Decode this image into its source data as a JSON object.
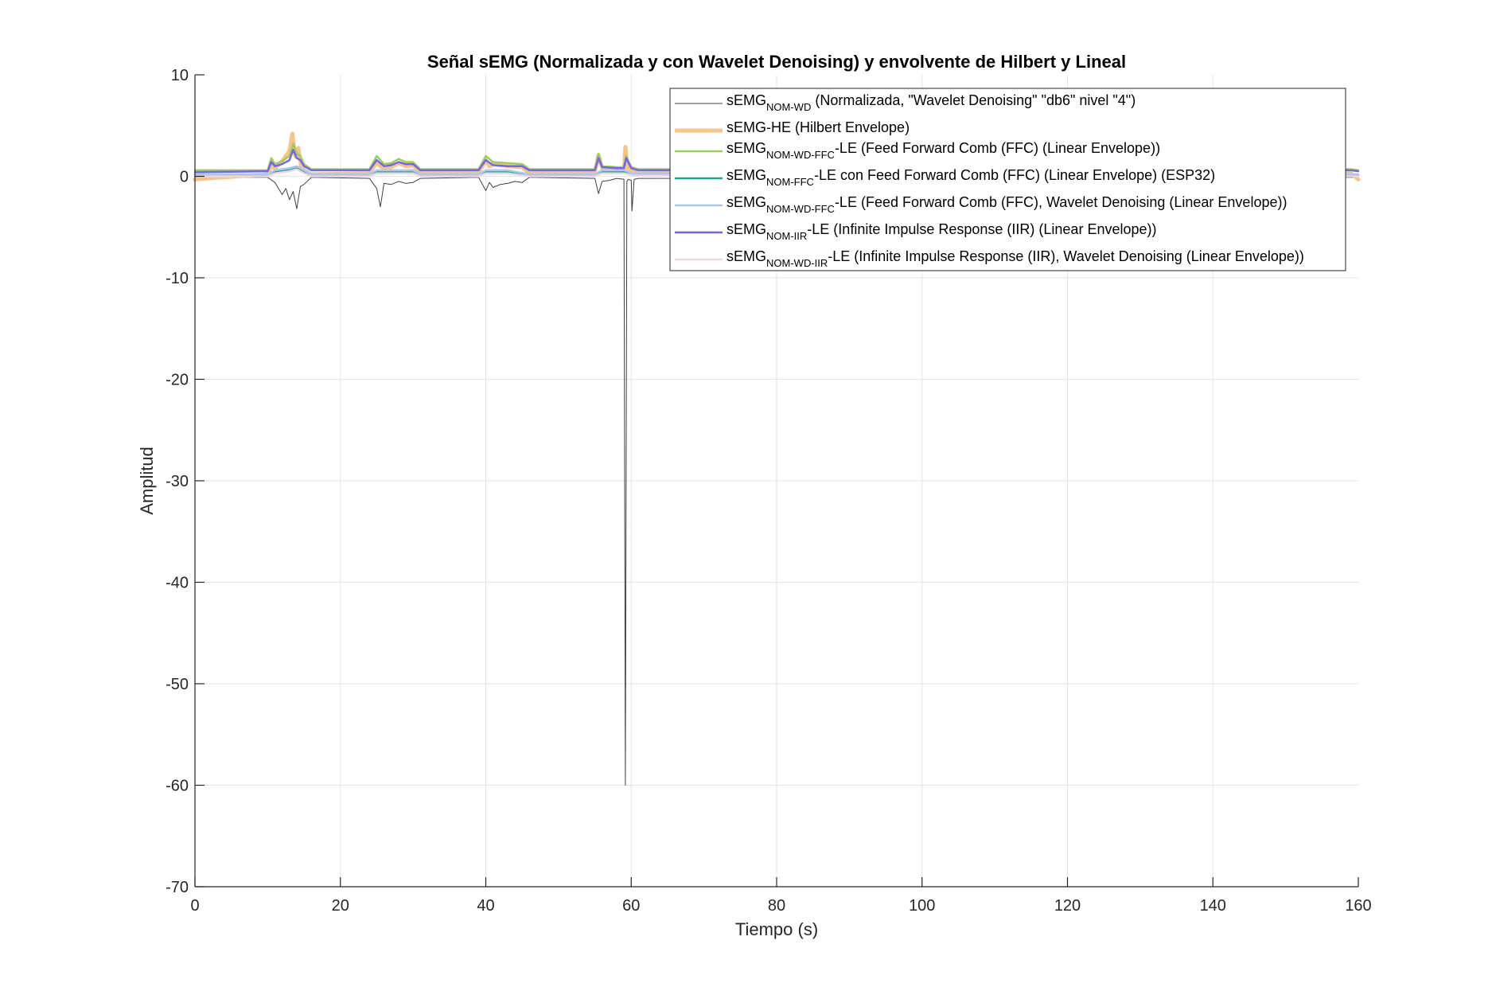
{
  "chart_data": {
    "type": "line",
    "title": "Señal sEMG (Normalizada y con Wavelet Denoising) y envolvente de Hilbert y Lineal",
    "xlabel": "Tiempo (s)",
    "ylabel": "Amplitud",
    "xlim": [
      0,
      160
    ],
    "ylim": [
      -70,
      10
    ],
    "x_ticks": [
      0,
      20,
      40,
      60,
      80,
      100,
      120,
      140,
      160
    ],
    "y_ticks": [
      10,
      0,
      -10,
      -20,
      -30,
      -40,
      -50,
      -60,
      -70
    ],
    "grid": true,
    "legend_position": "top-right",
    "series": [
      {
        "name_main": "sEMG",
        "name_sub": "NOM-WD",
        "name_rest": " (Normalizada, \"Wavelet Denoising\" \"db6\" nivel \"4\")",
        "color": "#404040",
        "width": 1,
        "x": [
          0,
          10,
          11,
          12,
          12.5,
          13,
          13.5,
          14,
          14.5,
          15,
          16,
          24,
          25,
          25.5,
          26,
          27,
          28,
          29,
          30,
          31,
          39,
          40,
          40.5,
          41,
          42,
          43,
          44,
          45,
          46,
          55,
          55.5,
          56,
          57,
          58,
          59,
          59.2,
          59.4,
          59.6,
          60,
          60.1,
          60.4,
          61,
          160
        ],
        "values": [
          -0.1,
          -0.1,
          -0.6,
          -1.8,
          -1.2,
          -2.3,
          -1.5,
          -3.2,
          -1.0,
          -0.8,
          -0.1,
          -0.2,
          -1.2,
          -3.0,
          -0.7,
          -0.8,
          -0.5,
          -0.7,
          -0.6,
          -0.2,
          -0.1,
          -1.4,
          -0.6,
          -1.1,
          -0.8,
          -0.7,
          -0.5,
          -0.6,
          -0.1,
          -0.2,
          -1.7,
          -0.5,
          -0.4,
          -0.2,
          -0.3,
          -60,
          -0.5,
          -0.3,
          -0.4,
          -3.4,
          -0.3,
          -0.2,
          -0.1
        ]
      },
      {
        "name_main": "sEMG-HE (Hilbert Envelope)",
        "name_sub": "",
        "name_rest": "",
        "color": "#f5c48a",
        "width": 5,
        "x": [
          0,
          10,
          10.5,
          11,
          12,
          13,
          13.4,
          13.8,
          14.2,
          14.6,
          15,
          16,
          24,
          25,
          25.5,
          26,
          27,
          28,
          29,
          30,
          31,
          39,
          40,
          40.5,
          41,
          43,
          45,
          46,
          55,
          55.5,
          56,
          57,
          58,
          59,
          59.2,
          59.5,
          60,
          61,
          159,
          160
        ],
        "values": [
          -0.3,
          0.2,
          1.0,
          0.8,
          1.5,
          2.5,
          4.2,
          2.0,
          2.8,
          1.0,
          0.6,
          0.2,
          0.3,
          1.4,
          1.0,
          0.8,
          0.9,
          1.3,
          1.0,
          1.1,
          0.3,
          0.3,
          1.6,
          1.0,
          1.2,
          1.0,
          0.9,
          0.3,
          0.4,
          2.1,
          0.8,
          0.6,
          0.5,
          0.6,
          2.9,
          0.8,
          0.6,
          0.3,
          0.3,
          -0.3
        ]
      },
      {
        "name_main": "sEMG",
        "name_sub": "NOM-WD-FFC",
        "name_rest": "-LE (Feed Forward Comb (FFC) (Linear Envelope))",
        "color": "#9ccc5c",
        "width": 2.5,
        "x": [
          0,
          10,
          10.5,
          11,
          12,
          13,
          13.5,
          14,
          14.5,
          15,
          16,
          24,
          25,
          26,
          27,
          28,
          29,
          30,
          31,
          39,
          40,
          41,
          43,
          45,
          46,
          55,
          55.5,
          56,
          58,
          59,
          59.3,
          60,
          61,
          159,
          160
        ],
        "values": [
          0.6,
          0.6,
          1.8,
          1.2,
          1.5,
          2.0,
          3.2,
          2.2,
          2.0,
          1.2,
          0.7,
          0.7,
          2.0,
          1.2,
          1.3,
          1.7,
          1.4,
          1.4,
          0.7,
          0.7,
          2.0,
          1.4,
          1.3,
          1.2,
          0.7,
          0.7,
          2.2,
          1.0,
          0.9,
          0.9,
          2.0,
          0.9,
          0.7,
          0.7,
          0.6
        ]
      },
      {
        "name_main": "sEMG",
        "name_sub": "NOM-FFC",
        "name_rest": "-LE con Feed Forward Comb (FFC) (Linear Envelope) (ESP32)",
        "color": "#1aa58c",
        "width": 2.5,
        "x": [
          0,
          10,
          11,
          13,
          14,
          15,
          16,
          24,
          25,
          27,
          30,
          31,
          39,
          40,
          43,
          46,
          55,
          56,
          59,
          60,
          160
        ],
        "values": [
          0.1,
          0.1,
          0.4,
          0.6,
          0.8,
          0.4,
          0.1,
          0.1,
          0.4,
          0.4,
          0.4,
          0.1,
          0.1,
          0.4,
          0.4,
          0.1,
          0.1,
          0.4,
          0.4,
          0.2,
          0.1
        ]
      },
      {
        "name_main": "sEMG",
        "name_sub": "NOM-WD-FFC",
        "name_rest": "-LE (Feed Forward Comb (FFC), Wavelet Denoising (Linear Envelope))",
        "color": "#a8c8f4",
        "width": 2.5,
        "x": [
          0,
          10,
          11,
          13,
          14,
          15,
          16,
          24,
          25,
          27,
          30,
          31,
          39,
          40,
          43,
          46,
          55,
          56,
          59,
          60,
          160
        ],
        "values": [
          0.2,
          0.2,
          0.6,
          0.8,
          1.0,
          0.6,
          0.2,
          0.2,
          0.6,
          0.6,
          0.6,
          0.2,
          0.2,
          0.6,
          0.6,
          0.2,
          0.2,
          0.6,
          0.6,
          0.3,
          0.2
        ]
      },
      {
        "name_main": "sEMG",
        "name_sub": "NOM-IIR",
        "name_rest": "-LE (Infinite Impulse Response (IIR) (Linear Envelope))",
        "color": "#7566e8",
        "width": 2.5,
        "x": [
          0,
          10,
          10.5,
          11,
          12,
          13,
          13.5,
          14,
          14.5,
          15,
          16,
          24,
          25,
          26,
          27,
          28,
          29,
          30,
          31,
          39,
          40,
          41,
          43,
          45,
          46,
          55,
          55.5,
          56,
          58,
          59,
          59.3,
          60,
          61,
          159,
          160
        ],
        "values": [
          0.4,
          0.5,
          1.4,
          1.0,
          1.2,
          1.6,
          2.6,
          1.8,
          1.6,
          1.0,
          0.6,
          0.6,
          1.6,
          1.0,
          1.1,
          1.4,
          1.2,
          1.2,
          0.6,
          0.6,
          1.6,
          1.1,
          1.0,
          1.0,
          0.6,
          0.6,
          1.8,
          0.9,
          0.8,
          0.8,
          1.8,
          0.8,
          0.6,
          0.6,
          0.5
        ]
      },
      {
        "name_main": "sEMG",
        "name_sub": "NOM-WD-IIR",
        "name_rest": "-LE (Infinite Impulse Response (IIR), Wavelet Denoising (Linear Envelope))",
        "color": "#f4d4e0",
        "width": 2.5,
        "x": [
          0,
          10,
          11,
          13,
          14,
          15,
          16,
          24,
          25,
          27,
          30,
          31,
          39,
          40,
          43,
          46,
          55,
          56,
          59,
          60,
          160
        ],
        "values": [
          0.0,
          0.0,
          0.3,
          0.5,
          0.7,
          0.3,
          0.0,
          0.0,
          0.3,
          0.3,
          0.3,
          0.0,
          0.0,
          0.3,
          0.3,
          0.0,
          0.0,
          0.3,
          0.3,
          0.1,
          0.0
        ]
      }
    ]
  }
}
